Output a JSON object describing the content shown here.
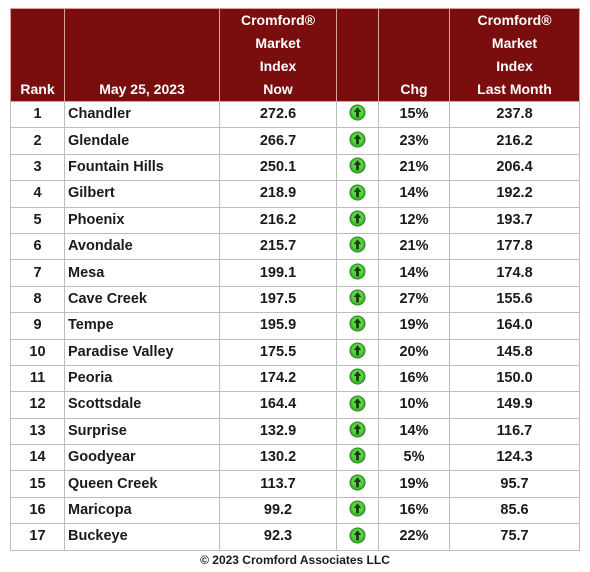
{
  "header": {
    "rank": "Rank",
    "date": "May 25, 2023",
    "now_lines": [
      "Cromford®",
      "Market",
      "Index",
      "Now"
    ],
    "chg": "Chg",
    "last_lines": [
      "Cromford®",
      "Market",
      "Index",
      "Last Month"
    ]
  },
  "rows": [
    {
      "rank": "1",
      "city": "Chandler",
      "now": "272.6",
      "chg": "15%",
      "last": "237.8"
    },
    {
      "rank": "2",
      "city": "Glendale",
      "now": "266.7",
      "chg": "23%",
      "last": "216.2"
    },
    {
      "rank": "3",
      "city": "Fountain Hills",
      "now": "250.1",
      "chg": "21%",
      "last": "206.4"
    },
    {
      "rank": "4",
      "city": "Gilbert",
      "now": "218.9",
      "chg": "14%",
      "last": "192.2"
    },
    {
      "rank": "5",
      "city": "Phoenix",
      "now": "216.2",
      "chg": "12%",
      "last": "193.7"
    },
    {
      "rank": "6",
      "city": "Avondale",
      "now": "215.7",
      "chg": "21%",
      "last": "177.8"
    },
    {
      "rank": "7",
      "city": "Mesa",
      "now": "199.1",
      "chg": "14%",
      "last": "174.8"
    },
    {
      "rank": "8",
      "city": "Cave Creek",
      "now": "197.5",
      "chg": "27%",
      "last": "155.6"
    },
    {
      "rank": "9",
      "city": "Tempe",
      "now": "195.9",
      "chg": "19%",
      "last": "164.0"
    },
    {
      "rank": "10",
      "city": "Paradise Valley",
      "now": "175.5",
      "chg": "20%",
      "last": "145.8"
    },
    {
      "rank": "11",
      "city": "Peoria",
      "now": "174.2",
      "chg": "16%",
      "last": "150.0"
    },
    {
      "rank": "12",
      "city": "Scottsdale",
      "now": "164.4",
      "chg": "10%",
      "last": "149.9"
    },
    {
      "rank": "13",
      "city": "Surprise",
      "now": "132.9",
      "chg": "14%",
      "last": "116.7"
    },
    {
      "rank": "14",
      "city": "Goodyear",
      "now": "130.2",
      "chg": "5%",
      "last": "124.3"
    },
    {
      "rank": "15",
      "city": "Queen Creek",
      "now": "113.7",
      "chg": "19%",
      "last": "95.7"
    },
    {
      "rank": "16",
      "city": "Maricopa",
      "now": "99.2",
      "chg": "16%",
      "last": "85.6"
    },
    {
      "rank": "17",
      "city": "Buckeye",
      "now": "92.3",
      "chg": "22%",
      "last": "75.7"
    }
  ],
  "trend_icon": "green-up-arrow-icon",
  "colors": {
    "header_bg": "#7a0e0e",
    "arrow_green": "#3cbf2a"
  },
  "footer": "© 2023 Cromford Associates LLC"
}
